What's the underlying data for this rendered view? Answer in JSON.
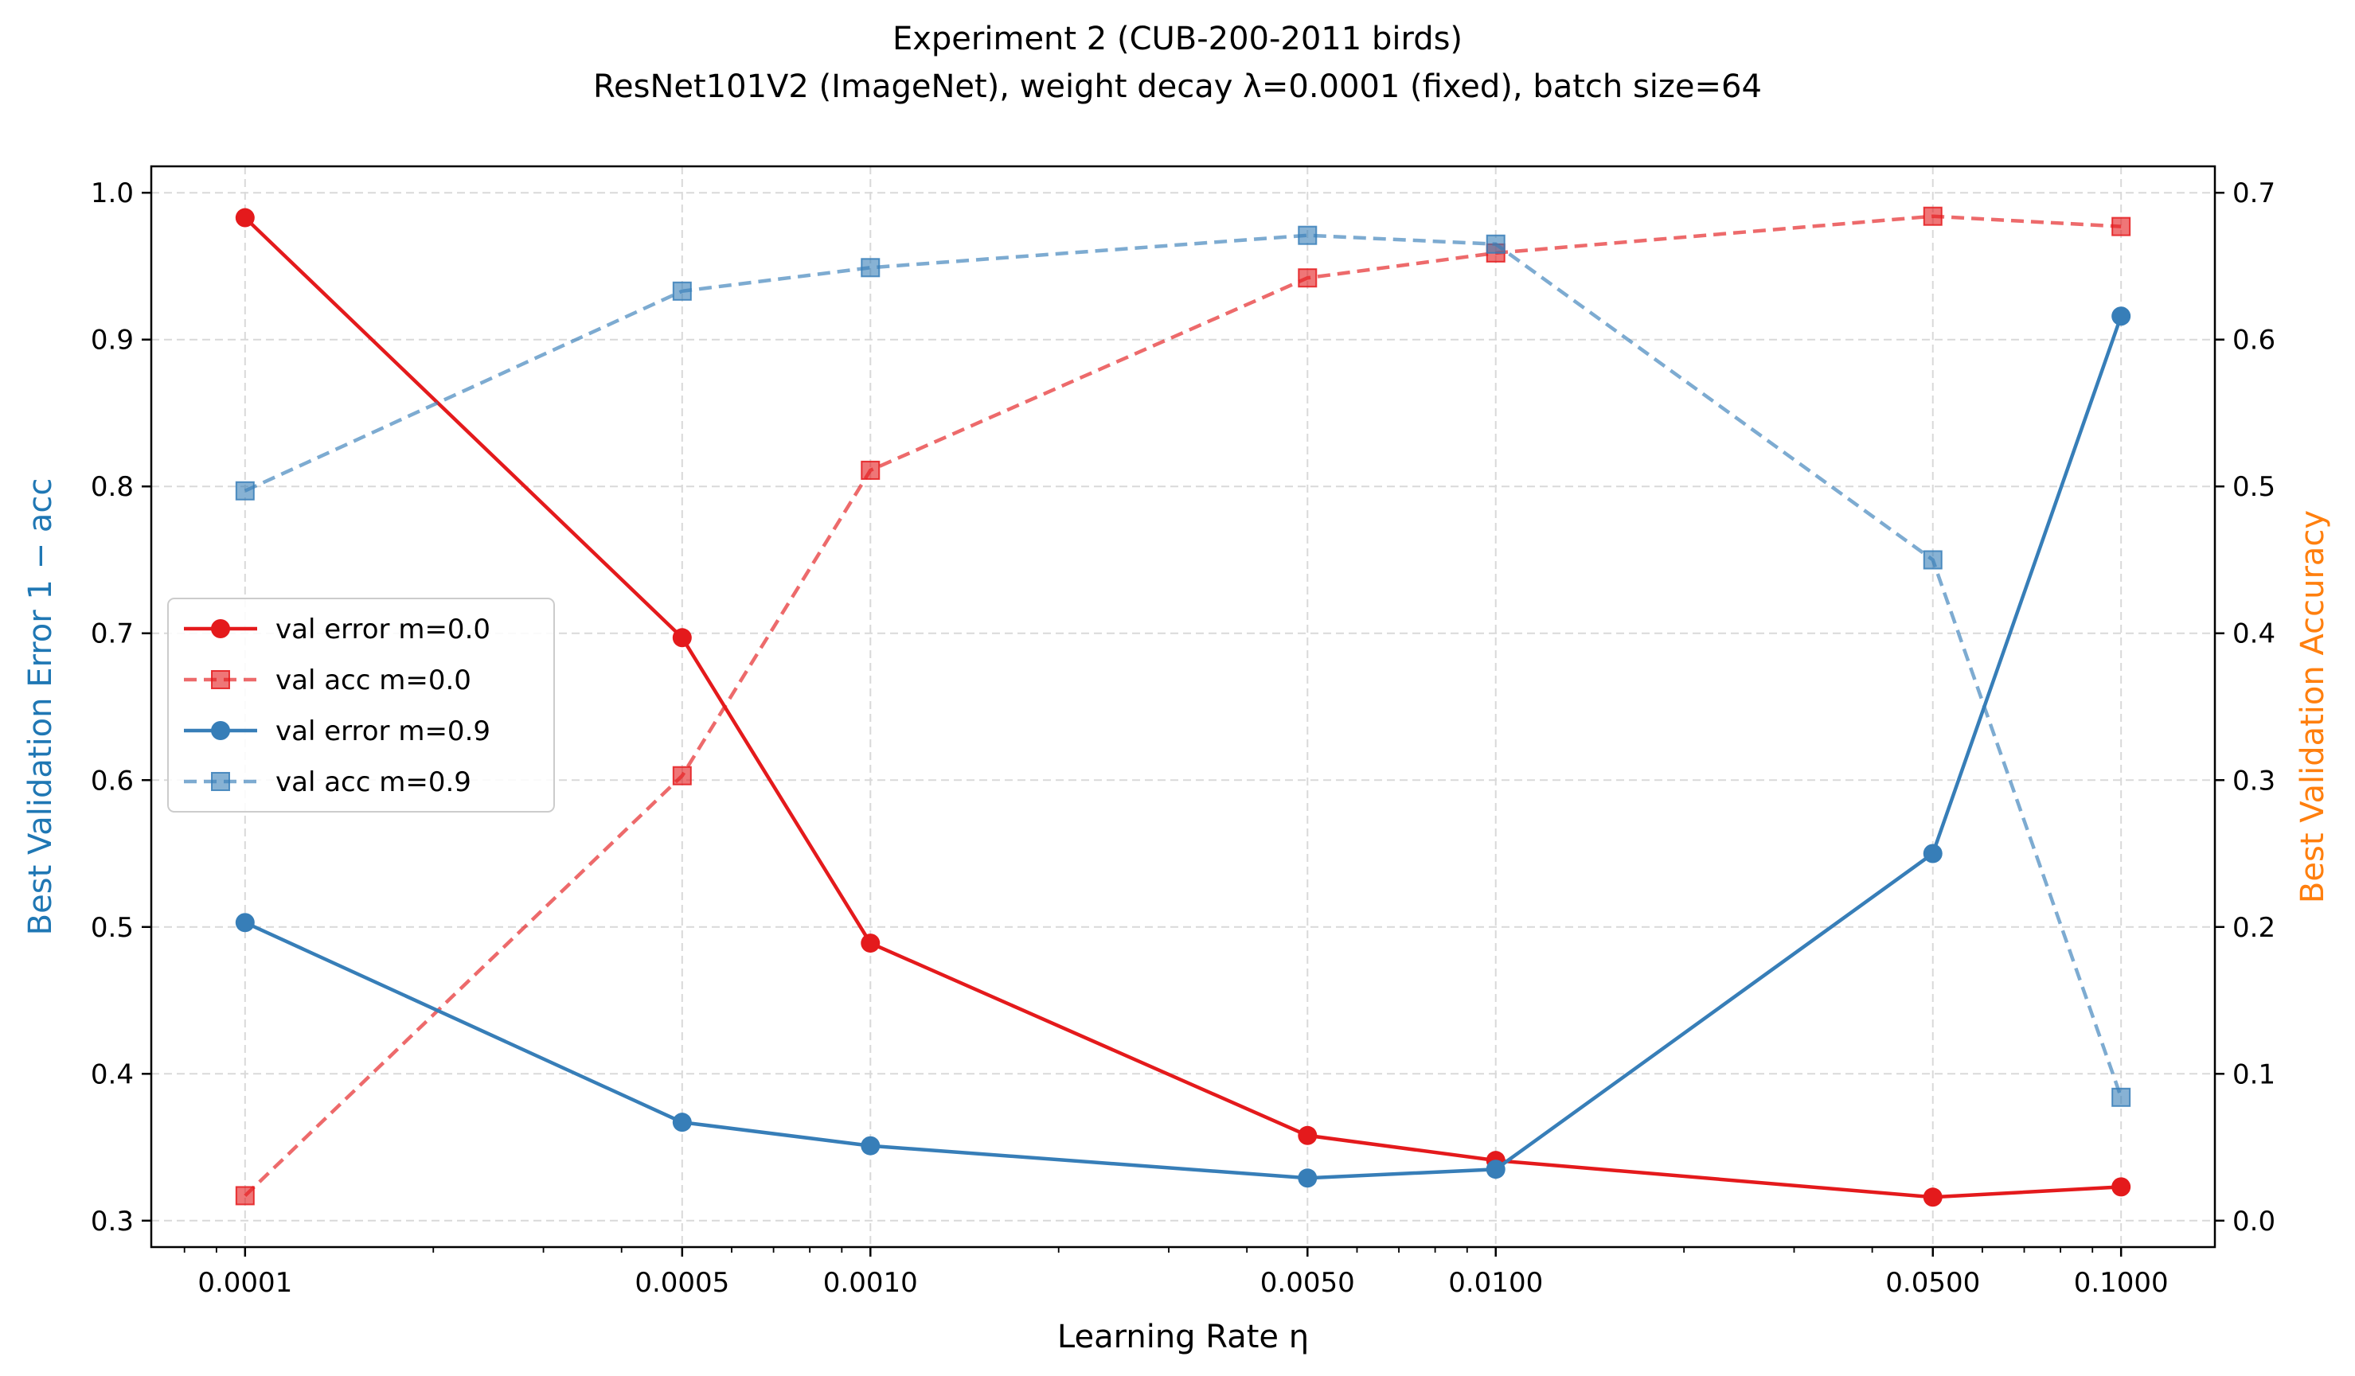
{
  "chart_data": {
    "type": "line",
    "title": "Experiment 2 (CUB-200-2011 birds)",
    "subtitle": "ResNet101V2 (ImageNet), weight decay λ=0.0001 (fixed), batch size=64",
    "xlabel": "Learning Rate η",
    "ylabel_left": "Best Validation Error 1 − acc",
    "ylabel_right": "Best Validation Accuracy",
    "ylabel_left_color": "#1f77b4",
    "ylabel_right_color": "#ff7f0e",
    "x_scale": "log",
    "x": [
      0.0001,
      0.0005,
      0.001,
      0.005,
      0.01,
      0.05,
      0.1
    ],
    "x_tick_labels": [
      "0.0001",
      "0.0005",
      "0.0010",
      "0.0050",
      "0.0100",
      "0.0500",
      "0.1000"
    ],
    "ylim_left": [
      0.3,
      1.0
    ],
    "ylim_right": [
      0.0,
      0.7
    ],
    "y_left_ticks": [
      "0.3",
      "0.4",
      "0.5",
      "0.6",
      "0.7",
      "0.8",
      "0.9",
      "1.0"
    ],
    "y_right_ticks": [
      "0.0",
      "0.1",
      "0.2",
      "0.3",
      "0.4",
      "0.5",
      "0.6",
      "0.7"
    ],
    "grid": true,
    "legend_position": "center-left",
    "series": [
      {
        "name": "val error m=0.0",
        "axis": "left",
        "style": "solid",
        "marker": "circle",
        "color": "#e41a1c",
        "values": [
          0.983,
          0.697,
          0.489,
          0.358,
          0.341,
          0.316,
          0.323
        ]
      },
      {
        "name": "val acc m=0.0",
        "axis": "right",
        "style": "dashed",
        "marker": "square",
        "color": "#e41a1c",
        "values": [
          0.017,
          0.303,
          0.511,
          0.642,
          0.659,
          0.684,
          0.677
        ]
      },
      {
        "name": "val error m=0.9",
        "axis": "left",
        "style": "solid",
        "marker": "circle",
        "color": "#377eb8",
        "values": [
          0.503,
          0.367,
          0.351,
          0.329,
          0.335,
          0.55,
          0.916
        ]
      },
      {
        "name": "val acc m=0.9",
        "axis": "right",
        "style": "dashed",
        "marker": "square",
        "color": "#377eb8",
        "values": [
          0.497,
          0.633,
          0.649,
          0.671,
          0.665,
          0.45,
          0.084
        ]
      }
    ]
  }
}
